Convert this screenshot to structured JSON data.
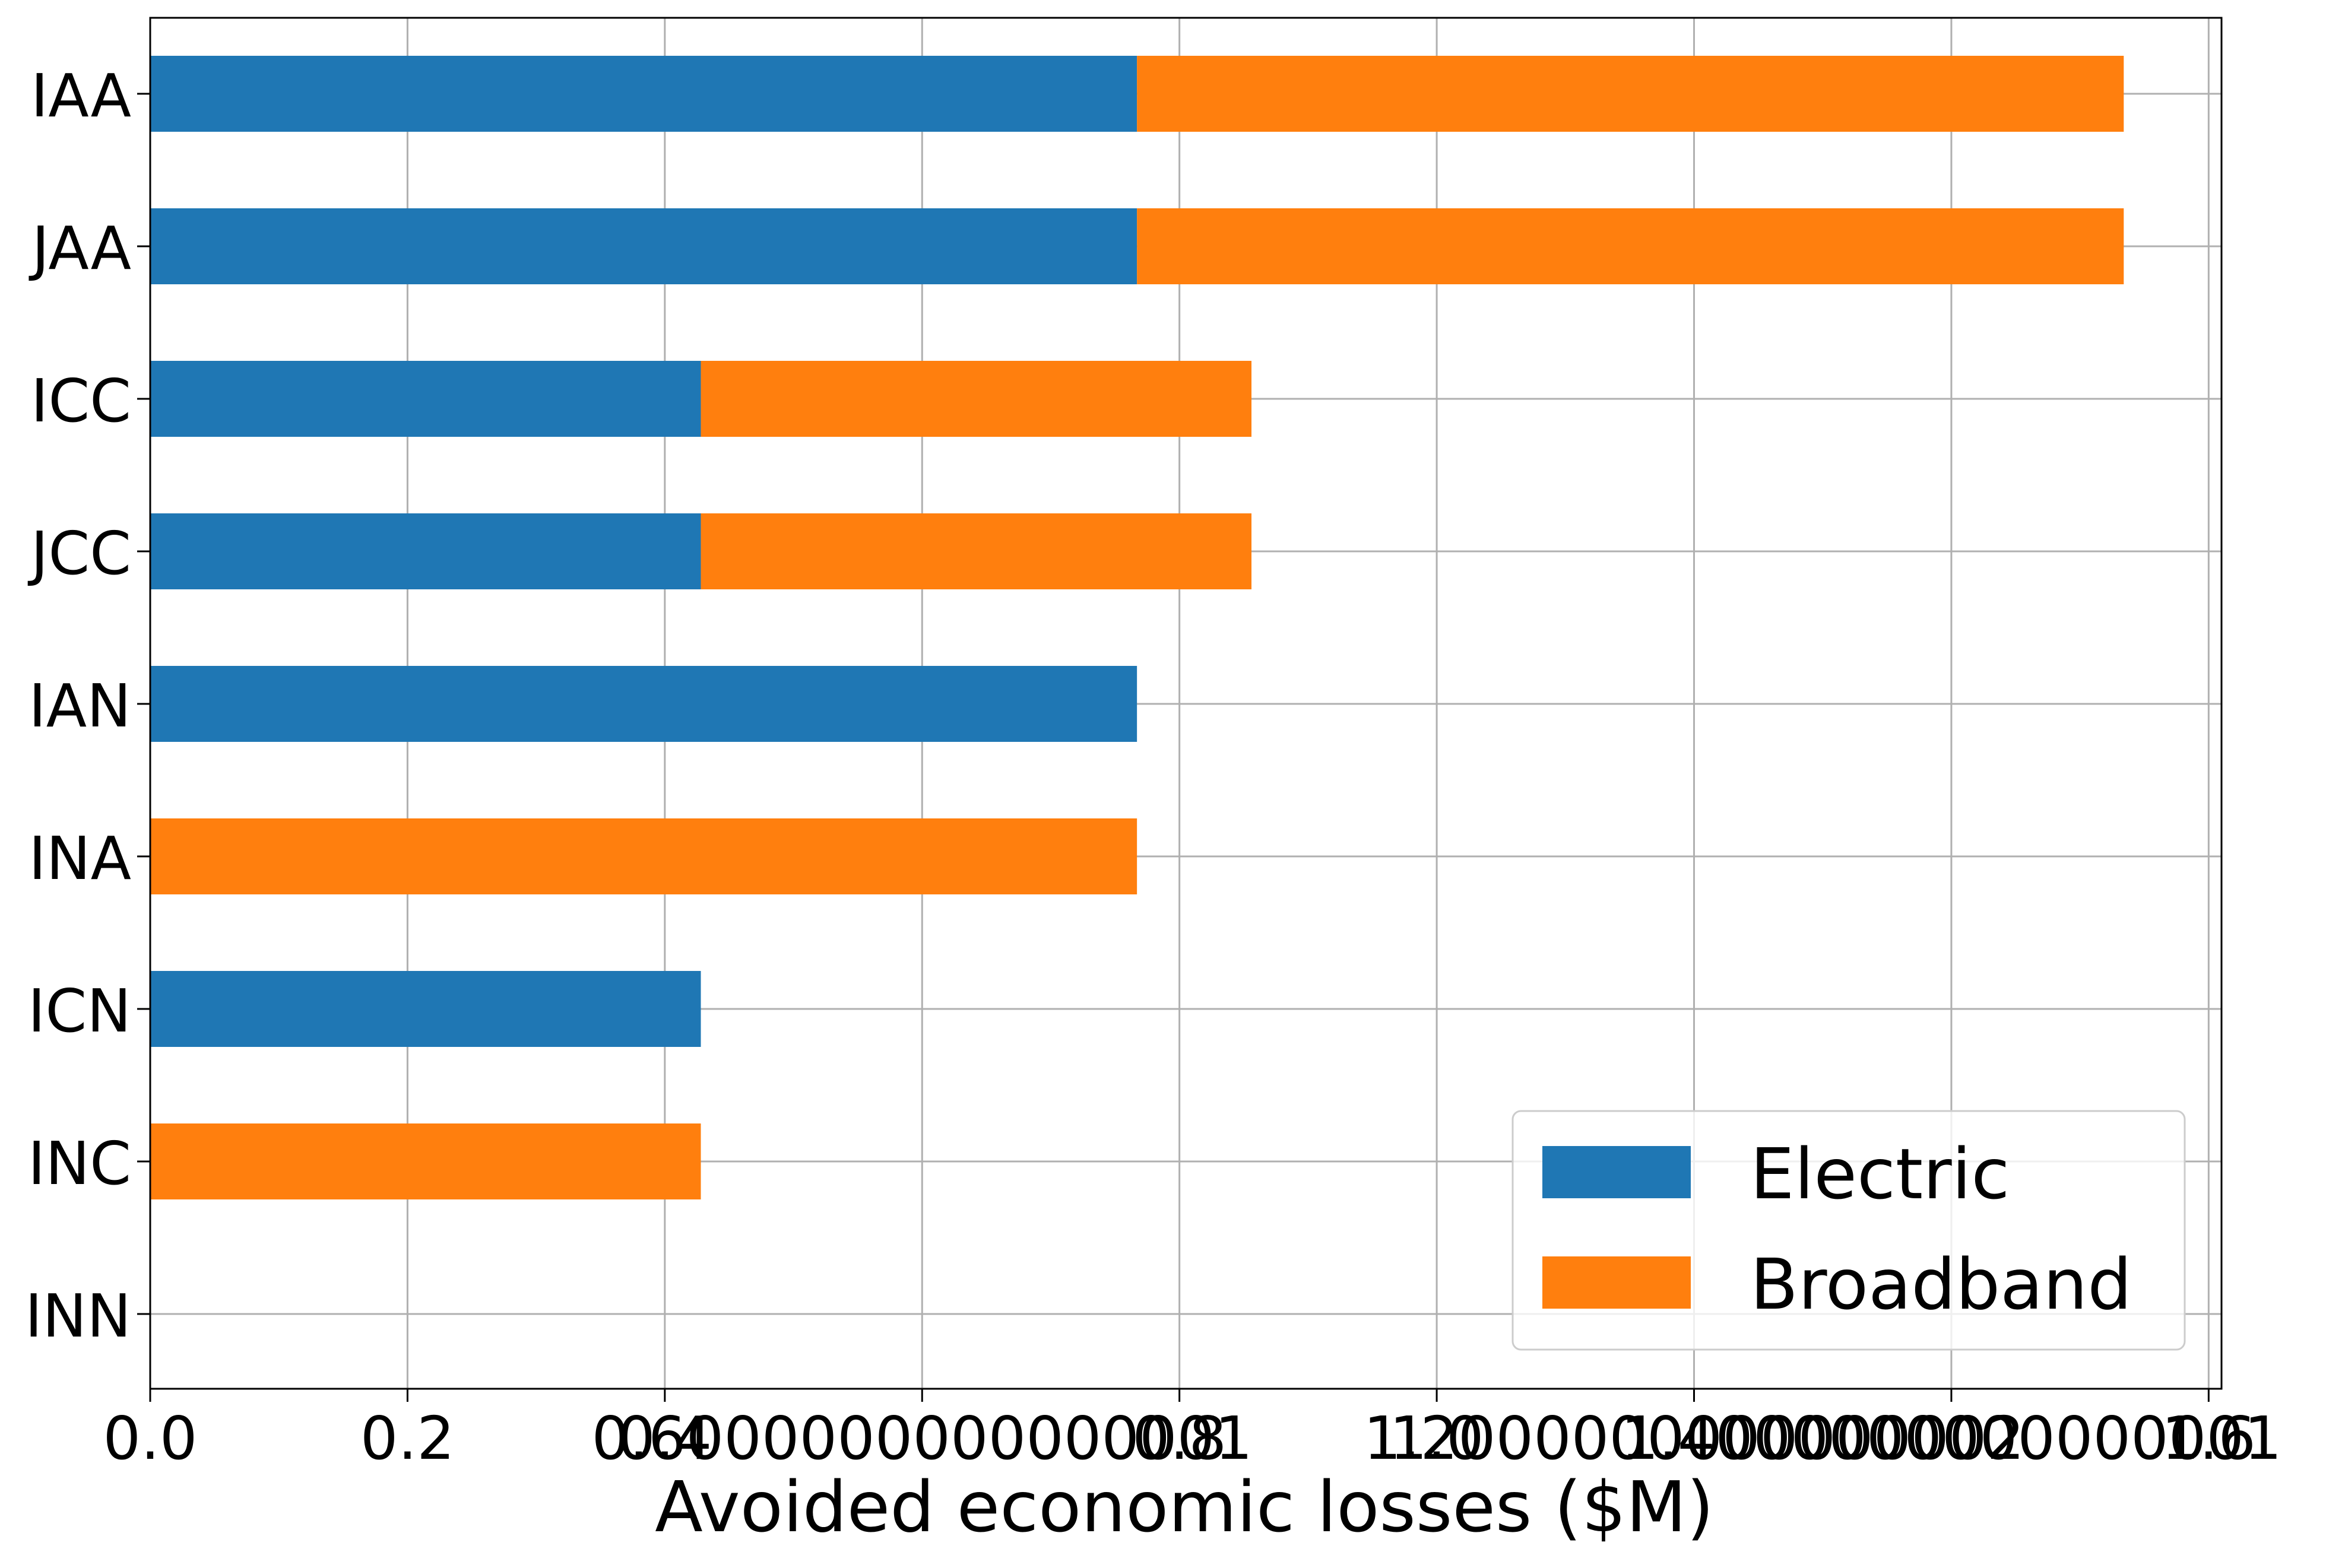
{
  "chart_data": {
    "type": "bar",
    "orientation": "horizontal",
    "stacked": true,
    "categories": [
      "IAA",
      "JAA",
      "ICC",
      "JCC",
      "IAN",
      "INA",
      "ICN",
      "INC",
      "INN"
    ],
    "series": [
      {
        "name": "Electric",
        "color": "#1f77b4",
        "values": [
          0.767,
          0.767,
          0.428,
          0.428,
          0.767,
          0,
          0.428,
          0,
          0
        ]
      },
      {
        "name": "Broadband",
        "color": "#ff7f0e",
        "values": [
          0.767,
          0.767,
          0.428,
          0.428,
          0,
          0.767,
          0,
          0.428,
          0
        ]
      }
    ],
    "xlabel": "Avoided economic losses ($M)",
    "ylabel": "",
    "xlim": [
      0,
      1.61
    ],
    "x_ticks": [
      0,
      0.2,
      0.4,
      0.6,
      0.8,
      1.0,
      1.2,
      1.4,
      1.6
    ],
    "x_tick_labels": [
      "0.0",
      "0.2",
      "0.4",
      "0.6000000000000001",
      "0.8",
      "1.0",
      "1.2000000000000002",
      "1.4000000000000001",
      "1.6"
    ],
    "grid": true,
    "legend_position": "lower-right"
  }
}
